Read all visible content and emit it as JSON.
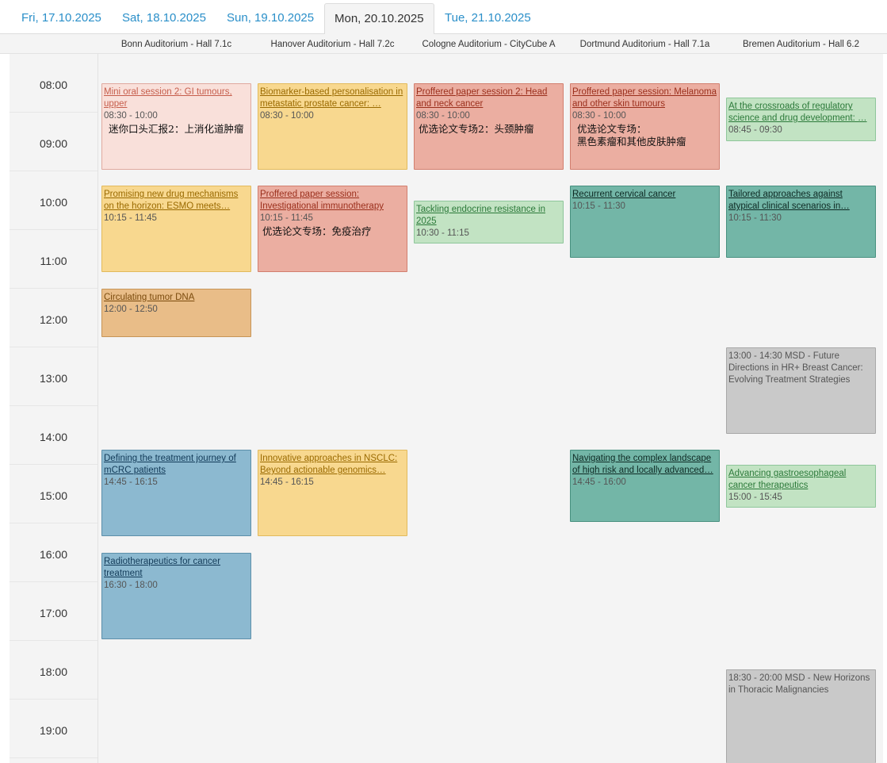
{
  "tabs": [
    {
      "label": "Fri, 17.10.2025",
      "active": false
    },
    {
      "label": "Sat, 18.10.2025",
      "active": false
    },
    {
      "label": "Sun, 19.10.2025",
      "active": false
    },
    {
      "label": "Mon, 20.10.2025",
      "active": true
    },
    {
      "label": "Tue, 21.10.2025",
      "active": false
    }
  ],
  "rooms": [
    "Bonn Auditorium - Hall 7.1c",
    "Hanover Auditorium - Hall 7.2c",
    "Cologne Auditorium - CityCube A",
    "Dortmund Auditorium - Hall 7.1a",
    "Bremen Auditorium - Hall 6.2"
  ],
  "hours": [
    "08:00",
    "09:00",
    "10:00",
    "11:00",
    "12:00",
    "13:00",
    "14:00",
    "15:00",
    "16:00",
    "17:00",
    "18:00",
    "19:00"
  ],
  "colors": {
    "pink": "#f9e0da",
    "yellow": "#f8d88f",
    "red": "#ebaea1",
    "light_green": "#c2e3c3",
    "teal": "#73b6a7",
    "orange": "#e9bd88",
    "blue": "#8cb9d0",
    "grey": "#c9c9c9",
    "tab_link": "#2a8fc9"
  },
  "events": [
    {
      "room": 0,
      "title": "Mini oral session 2: GI tumours, upper",
      "time": "08:30 - 10:00",
      "subtitle": "迷你口头汇报2：上消化道肿瘤"
    },
    {
      "room": 1,
      "title": "Biomarker-based personalisation in metastatic prostate cancer: …",
      "time": "08:30 - 10:00"
    },
    {
      "room": 2,
      "title": "Proffered paper session 2: Head and neck cancer",
      "time": "08:30 - 10:00",
      "subtitle": "优选论文专场2：头颈肿瘤"
    },
    {
      "room": 3,
      "title": "Proffered paper session: Melanoma and other skin tumours",
      "time": "08:30 - 10:00",
      "subtitle": "优选论文专场：",
      "subtitle2": "黑色素瘤和其他皮肤肿瘤"
    },
    {
      "room": 4,
      "title": "At the crossroads of regulatory science and drug development: …",
      "time": "08:45 - 09:30"
    },
    {
      "room": 0,
      "title": "Promising new drug mechanisms on the horizon: ESMO meets…",
      "time": "10:15 - 11:45"
    },
    {
      "room": 1,
      "title": "Proffered paper session: Investigational immunotherapy",
      "time": "10:15 - 11:45",
      "subtitle": "优选论文专场：免疫治疗"
    },
    {
      "room": 2,
      "title": "Tackling endocrine resistance in 2025",
      "time": "10:30 - 11:15"
    },
    {
      "room": 3,
      "title": "Recurrent cervical cancer",
      "time": "10:15 - 11:30"
    },
    {
      "room": 4,
      "title": "Tailored approaches against atypical clinical scenarios in…",
      "time": "10:15 - 11:30"
    },
    {
      "room": 0,
      "title": "Circulating tumor DNA",
      "time": "12:00 - 12:50"
    },
    {
      "room": 4,
      "text": "13:00 - 14:30 MSD - Future Directions in HR+ Breast Cancer: Evolving Treatment Strategies"
    },
    {
      "room": 0,
      "title": "Defining the treatment journey of mCRC patients",
      "time": "14:45 - 16:15"
    },
    {
      "room": 1,
      "title": "Innovative approaches in NSCLC: Beyond actionable genomics…",
      "time": "14:45 - 16:15"
    },
    {
      "room": 3,
      "title": "Navigating the complex landscape of high risk and locally advanced…",
      "time": "14:45 - 16:00"
    },
    {
      "room": 4,
      "title": "Advancing gastroesophageal cancer therapeutics",
      "time": "15:00 - 15:45"
    },
    {
      "room": 0,
      "title": "Radiotherapeutics for cancer treatment",
      "time": "16:30 - 18:00"
    },
    {
      "room": 4,
      "text": "18:30 - 20:00 MSD - New Horizons in Thoracic Malignancies"
    }
  ]
}
